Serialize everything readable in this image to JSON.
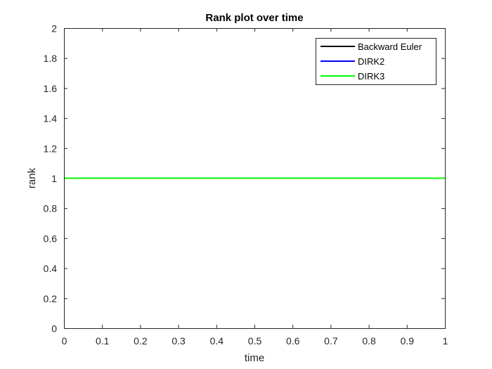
{
  "chart_data": {
    "type": "line",
    "title": "Rank plot over time",
    "xlabel": "time",
    "ylabel": "rank",
    "xlim": [
      0,
      1
    ],
    "ylim": [
      0,
      2
    ],
    "xticks": [
      "0",
      "0.1",
      "0.2",
      "0.3",
      "0.4",
      "0.5",
      "0.6",
      "0.7",
      "0.8",
      "0.9",
      "1"
    ],
    "yticks": [
      "0",
      "0.2",
      "0.4",
      "0.6",
      "0.8",
      "1",
      "1.2",
      "1.4",
      "1.6",
      "1.8",
      "2"
    ],
    "grid": false,
    "legend_position": "top-right",
    "series": [
      {
        "name": "Backward Euler",
        "color": "#000000",
        "x": [
          0,
          1
        ],
        "y": [
          1,
          1
        ]
      },
      {
        "name": "DIRK2",
        "color": "#0000ff",
        "x": [
          0,
          1
        ],
        "y": [
          1,
          1
        ]
      },
      {
        "name": "DIRK3",
        "color": "#00ff00",
        "x": [
          0,
          1
        ],
        "y": [
          1,
          1
        ]
      }
    ]
  }
}
